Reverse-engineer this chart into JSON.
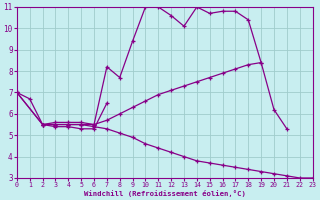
{
  "xlabel": "Windchill (Refroidissement éolien,°C)",
  "background_color": "#c8eef0",
  "line_color": "#880088",
  "xlim": [
    0,
    23
  ],
  "ylim": [
    3,
    11
  ],
  "yticks": [
    3,
    4,
    5,
    6,
    7,
    8,
    9,
    10,
    11
  ],
  "xticks": [
    0,
    1,
    2,
    3,
    4,
    5,
    6,
    7,
    8,
    9,
    10,
    11,
    12,
    13,
    14,
    15,
    16,
    17,
    18,
    19,
    20,
    21,
    22,
    23
  ],
  "grid_color": "#a0cccc",
  "series": [
    {
      "x": [
        0,
        1,
        2,
        3,
        4,
        5,
        6,
        7,
        8,
        9,
        10,
        11,
        12,
        13,
        14,
        15,
        16,
        17,
        18,
        19
      ],
      "y": [
        7.0,
        6.7,
        5.5,
        5.6,
        5.6,
        5.6,
        5.5,
        8.2,
        7.7,
        9.4,
        11.0,
        11.0,
        10.6,
        10.1,
        11.0,
        10.7,
        10.8,
        10.8,
        10.4,
        8.4
      ]
    },
    {
      "x": [
        0,
        2,
        3,
        4,
        5,
        6,
        7,
        8,
        9,
        10,
        11,
        12,
        13,
        14,
        15,
        16,
        17,
        18,
        19,
        20,
        21
      ],
      "y": [
        7.0,
        5.5,
        5.5,
        5.5,
        5.5,
        5.5,
        5.7,
        6.0,
        6.3,
        6.6,
        6.9,
        7.1,
        7.3,
        7.5,
        7.7,
        7.9,
        8.1,
        8.3,
        8.4,
        6.2,
        5.3
      ]
    },
    {
      "x": [
        0,
        2,
        3,
        4,
        5,
        6,
        7,
        8,
        9,
        10,
        11,
        12,
        13,
        14,
        15,
        16,
        17,
        18,
        19,
        20,
        21,
        22,
        23
      ],
      "y": [
        7.0,
        5.5,
        5.5,
        5.5,
        5.5,
        5.4,
        5.3,
        5.1,
        4.9,
        4.6,
        4.4,
        4.2,
        4.0,
        3.8,
        3.7,
        3.6,
        3.5,
        3.4,
        3.3,
        3.2,
        3.1,
        3.0,
        3.0
      ]
    },
    {
      "x": [
        2,
        3,
        4,
        5,
        6,
        7
      ],
      "y": [
        5.5,
        5.4,
        5.4,
        5.3,
        5.3,
        6.5
      ]
    }
  ]
}
